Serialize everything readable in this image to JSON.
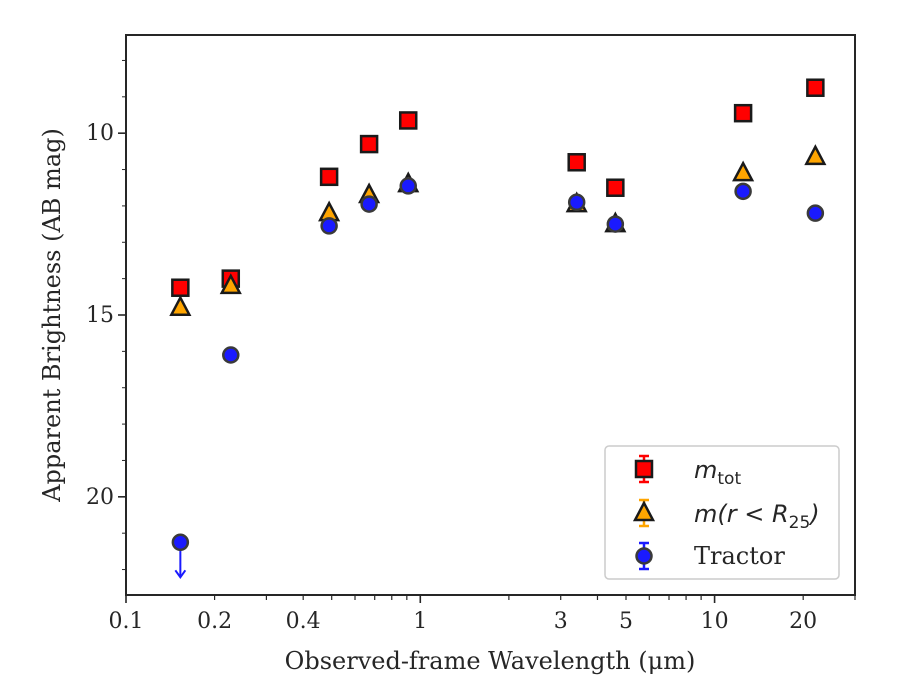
{
  "chart_data": {
    "type": "scatter",
    "title": "",
    "xlabel": "Observed-frame Wavelength (μm)",
    "ylabel": "Apparent Brightness (AB mag)",
    "xscale": "log",
    "xlim": [
      0.1,
      30
    ],
    "ylim": [
      22.7,
      7.3
    ],
    "y_inverted": true,
    "grid": false,
    "legend_position": "lower-right",
    "x_ticks": [
      {
        "value": 0.1,
        "label": "0.1"
      },
      {
        "value": 0.2,
        "label": "0.2"
      },
      {
        "value": 0.4,
        "label": "0.4"
      },
      {
        "value": 1,
        "label": "1"
      },
      {
        "value": 3,
        "label": "3"
      },
      {
        "value": 5,
        "label": "5"
      },
      {
        "value": 10,
        "label": "10"
      },
      {
        "value": 20,
        "label": "20"
      }
    ],
    "y_ticks": [
      {
        "value": 10,
        "label": "10"
      },
      {
        "value": 15,
        "label": "15"
      },
      {
        "value": 20,
        "label": "20"
      }
    ],
    "series": [
      {
        "name": "m_tot",
        "legend_main": "m",
        "legend_sub": "tot",
        "marker": "square",
        "fill": "#ff0000",
        "errcolor": "#ff0000",
        "points": [
          {
            "x": 0.153,
            "y": 14.25
          },
          {
            "x": 0.227,
            "y": 14.0
          },
          {
            "x": 0.49,
            "y": 11.2
          },
          {
            "x": 0.67,
            "y": 10.3
          },
          {
            "x": 0.91,
            "y": 9.65
          },
          {
            "x": 3.4,
            "y": 10.8
          },
          {
            "x": 4.6,
            "y": 11.5
          },
          {
            "x": 12.5,
            "y": 9.45
          },
          {
            "x": 22.0,
            "y": 8.75
          }
        ]
      },
      {
        "name": "m(r < R_25)",
        "legend_main": "m(r < R",
        "legend_sub": "25",
        "legend_tail": ")",
        "marker": "triangle",
        "fill": "#ffa500",
        "errcolor": "#ffa500",
        "points": [
          {
            "x": 0.153,
            "y": 14.8
          },
          {
            "x": 0.227,
            "y": 14.2
          },
          {
            "x": 0.49,
            "y": 12.2
          },
          {
            "x": 0.67,
            "y": 11.7
          },
          {
            "x": 0.91,
            "y": 11.4
          },
          {
            "x": 3.4,
            "y": 11.95
          },
          {
            "x": 4.6,
            "y": 12.5
          },
          {
            "x": 12.5,
            "y": 11.1
          },
          {
            "x": 22.0,
            "y": 10.65
          }
        ]
      },
      {
        "name": "Tractor",
        "legend_main": "Tractor",
        "marker": "circle",
        "fill": "#1a1aff",
        "errcolor": "#1a1aff",
        "points": [
          {
            "x": 0.153,
            "y": 21.25,
            "upper_limit": true
          },
          {
            "x": 0.227,
            "y": 16.1
          },
          {
            "x": 0.49,
            "y": 12.55
          },
          {
            "x": 0.67,
            "y": 11.95
          },
          {
            "x": 0.91,
            "y": 11.45
          },
          {
            "x": 3.4,
            "y": 11.9
          },
          {
            "x": 4.6,
            "y": 12.5
          },
          {
            "x": 12.5,
            "y": 11.6
          },
          {
            "x": 22.0,
            "y": 12.2
          }
        ]
      }
    ]
  }
}
